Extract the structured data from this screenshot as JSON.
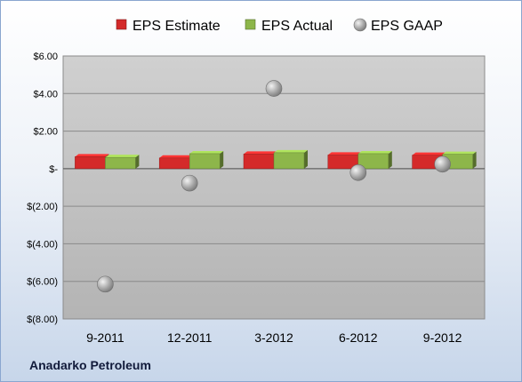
{
  "company": "Anadarko Petroleum",
  "chart_data": {
    "type": "bar",
    "categories": [
      "9-2011",
      "12-2011",
      "3-2012",
      "6-2012",
      "9-2012"
    ],
    "series": [
      {
        "name": "EPS Estimate",
        "kind": "bar",
        "color": "#d42a2a",
        "values": [
          0.64,
          0.57,
          0.78,
          0.73,
          0.72
        ]
      },
      {
        "name": "EPS Actual",
        "kind": "bar",
        "color": "#8db64a",
        "values": [
          0.6,
          0.8,
          0.85,
          0.8,
          0.77
        ]
      },
      {
        "name": "EPS GAAP",
        "kind": "scatter",
        "color": "#a8a8a8",
        "values": [
          -6.15,
          -0.77,
          4.27,
          -0.21,
          0.24
        ]
      }
    ],
    "ylim": [
      -8,
      6
    ],
    "yticks": [
      6,
      4,
      2,
      0,
      -2,
      -4,
      -6,
      -8
    ],
    "ytick_labels": [
      "$6.00",
      "$4.00",
      "$2.00",
      "$-",
      "$(2.00)",
      "$(4.00)",
      "$(6.00)",
      "$(8.00)"
    ],
    "legend_position": "top",
    "grid": true
  }
}
